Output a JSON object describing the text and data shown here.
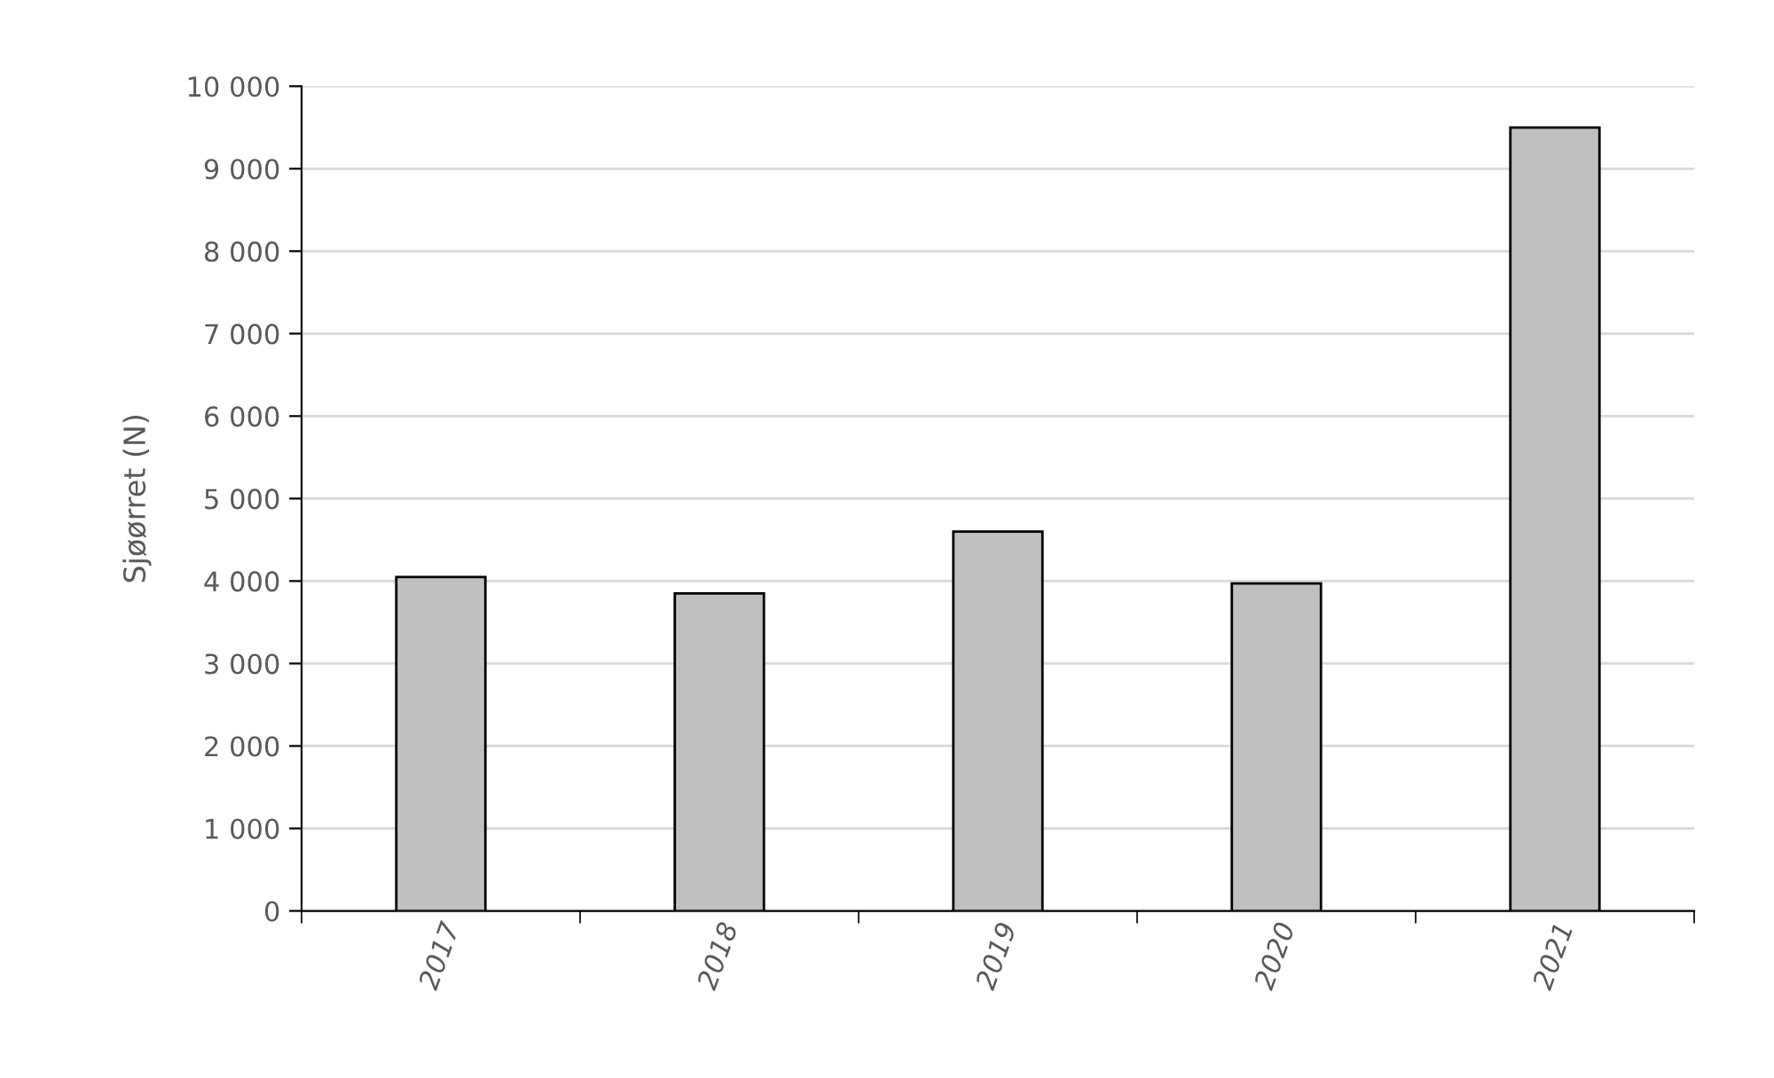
{
  "chart_data": {
    "type": "bar",
    "ylabel": "Sjøørret (N)",
    "categories": [
      "2017",
      "2018",
      "2019",
      "2020",
      "2021"
    ],
    "values": [
      4050,
      3850,
      4600,
      3970,
      9500
    ],
    "color": "#bfbfbf",
    "ylim": [
      0,
      10000
    ],
    "yticks": [
      0,
      {
        "value": 1000,
        "label": "1 000"
      },
      {
        "value": 2000,
        "label": "2 000"
      },
      {
        "value": 3000,
        "label": "3 000"
      },
      {
        "value": 4000,
        "label": "4 000"
      },
      {
        "value": 5000,
        "label": "5 000"
      },
      {
        "value": 6000,
        "label": "6 000"
      },
      {
        "value": 7000,
        "label": "7 000"
      },
      {
        "value": 8000,
        "label": "8 000"
      },
      {
        "value": 9000,
        "label": "9 000"
      },
      {
        "value": 10000,
        "label": "10 000"
      }
    ],
    "grid": "y",
    "legend": false
  }
}
